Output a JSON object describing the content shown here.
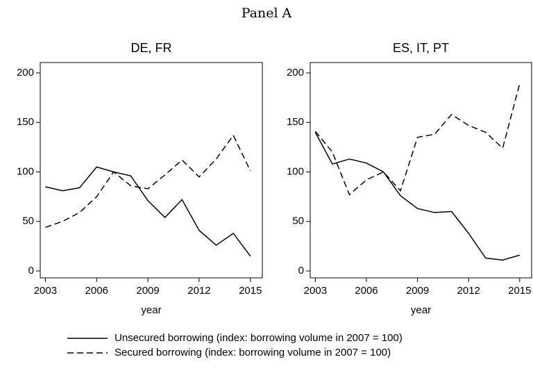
{
  "title": "Panel A",
  "chart_data": [
    {
      "type": "line",
      "title": "DE, FR",
      "xlabel": "year",
      "x": [
        2003,
        2004,
        2005,
        2006,
        2007,
        2008,
        2009,
        2010,
        2011,
        2012,
        2013,
        2014,
        2015
      ],
      "series": [
        {
          "name": "Unsecured borrowing (index: borrowing volume in 2007 = 100)",
          "color": "#000000",
          "dash": "solid",
          "values": [
            85,
            81,
            84,
            105,
            100,
            96,
            71,
            54,
            72,
            41,
            26,
            38,
            15
          ]
        },
        {
          "name": "Secured borrowing (index: borrowing volume in 2007 = 100)",
          "color": "#000000",
          "dash": "dashed",
          "values": [
            44,
            50,
            59,
            75,
            100,
            86,
            83,
            97,
            112,
            95,
            113,
            137,
            101
          ]
        }
      ],
      "xlim": [
        2002.7,
        2015.7
      ],
      "xticks": [
        2003,
        2006,
        2009,
        2012,
        2015
      ],
      "ylim": [
        -7,
        210.5
      ],
      "yticks": [
        0,
        50,
        100,
        150,
        200
      ],
      "grid": false
    },
    {
      "type": "line",
      "title": "ES, IT, PT",
      "xlabel": "year",
      "x": [
        2003,
        2004,
        2005,
        2006,
        2007,
        2008,
        2009,
        2010,
        2011,
        2012,
        2013,
        2014,
        2015
      ],
      "series": [
        {
          "name": "Unsecured borrowing (index: borrowing volume in 2007 = 100)",
          "color": "#000000",
          "dash": "solid",
          "values": [
            140,
            108,
            113,
            109,
            100,
            76,
            63,
            59,
            60,
            38,
            13,
            11,
            16
          ]
        },
        {
          "name": "Secured borrowing (index: borrowing volume in 2007 = 100)",
          "color": "#000000",
          "dash": "dashed",
          "values": [
            141,
            120,
            77,
            92,
            100,
            81,
            135,
            138,
            158,
            147,
            140,
            124,
            189
          ]
        }
      ],
      "xlim": [
        2002.7,
        2015.7
      ],
      "xticks": [
        2003,
        2006,
        2009,
        2012,
        2015
      ],
      "ylim": [
        -7,
        210.5
      ],
      "yticks": [
        0,
        50,
        100,
        150,
        200
      ],
      "grid": false
    }
  ]
}
